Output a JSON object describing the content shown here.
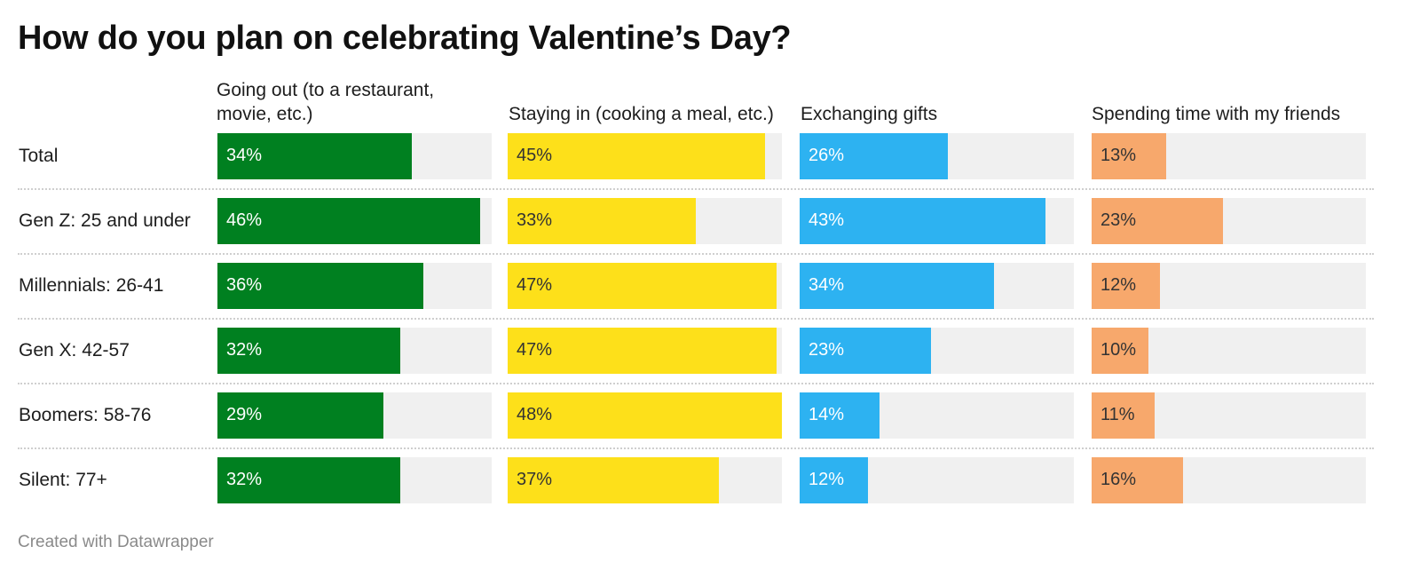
{
  "chart_data": {
    "type": "bar",
    "title": "How do you plan on celebrating Valentine’s Day?",
    "categories": [
      "Total",
      "Gen Z: 25 and under",
      "Millennials: 26-41",
      "Gen X: 42-57",
      "Boomers: 58-76",
      "Silent: 77+"
    ],
    "series": [
      {
        "name": "Going out (to a restaurant, movie, etc.)",
        "color": "#008020",
        "text_color": "#ffffff",
        "values": [
          34,
          46,
          36,
          32,
          29,
          32
        ]
      },
      {
        "name": "Staying in (cooking a meal, etc.)",
        "color": "#fde01a",
        "text_color": "#333333",
        "values": [
          45,
          33,
          47,
          47,
          48,
          37
        ]
      },
      {
        "name": "Exchanging gifts",
        "color": "#2db2f1",
        "text_color": "#ffffff",
        "values": [
          26,
          43,
          34,
          23,
          14,
          12
        ]
      },
      {
        "name": "Spending time with my friends",
        "color": "#f7a86c",
        "text_color": "#333333",
        "values": [
          13,
          23,
          12,
          10,
          11,
          16
        ]
      }
    ],
    "value_suffix": "%",
    "xlim": [
      0,
      48
    ],
    "track_color": "#f0f0f0"
  },
  "footer": "Created with Datawrapper"
}
